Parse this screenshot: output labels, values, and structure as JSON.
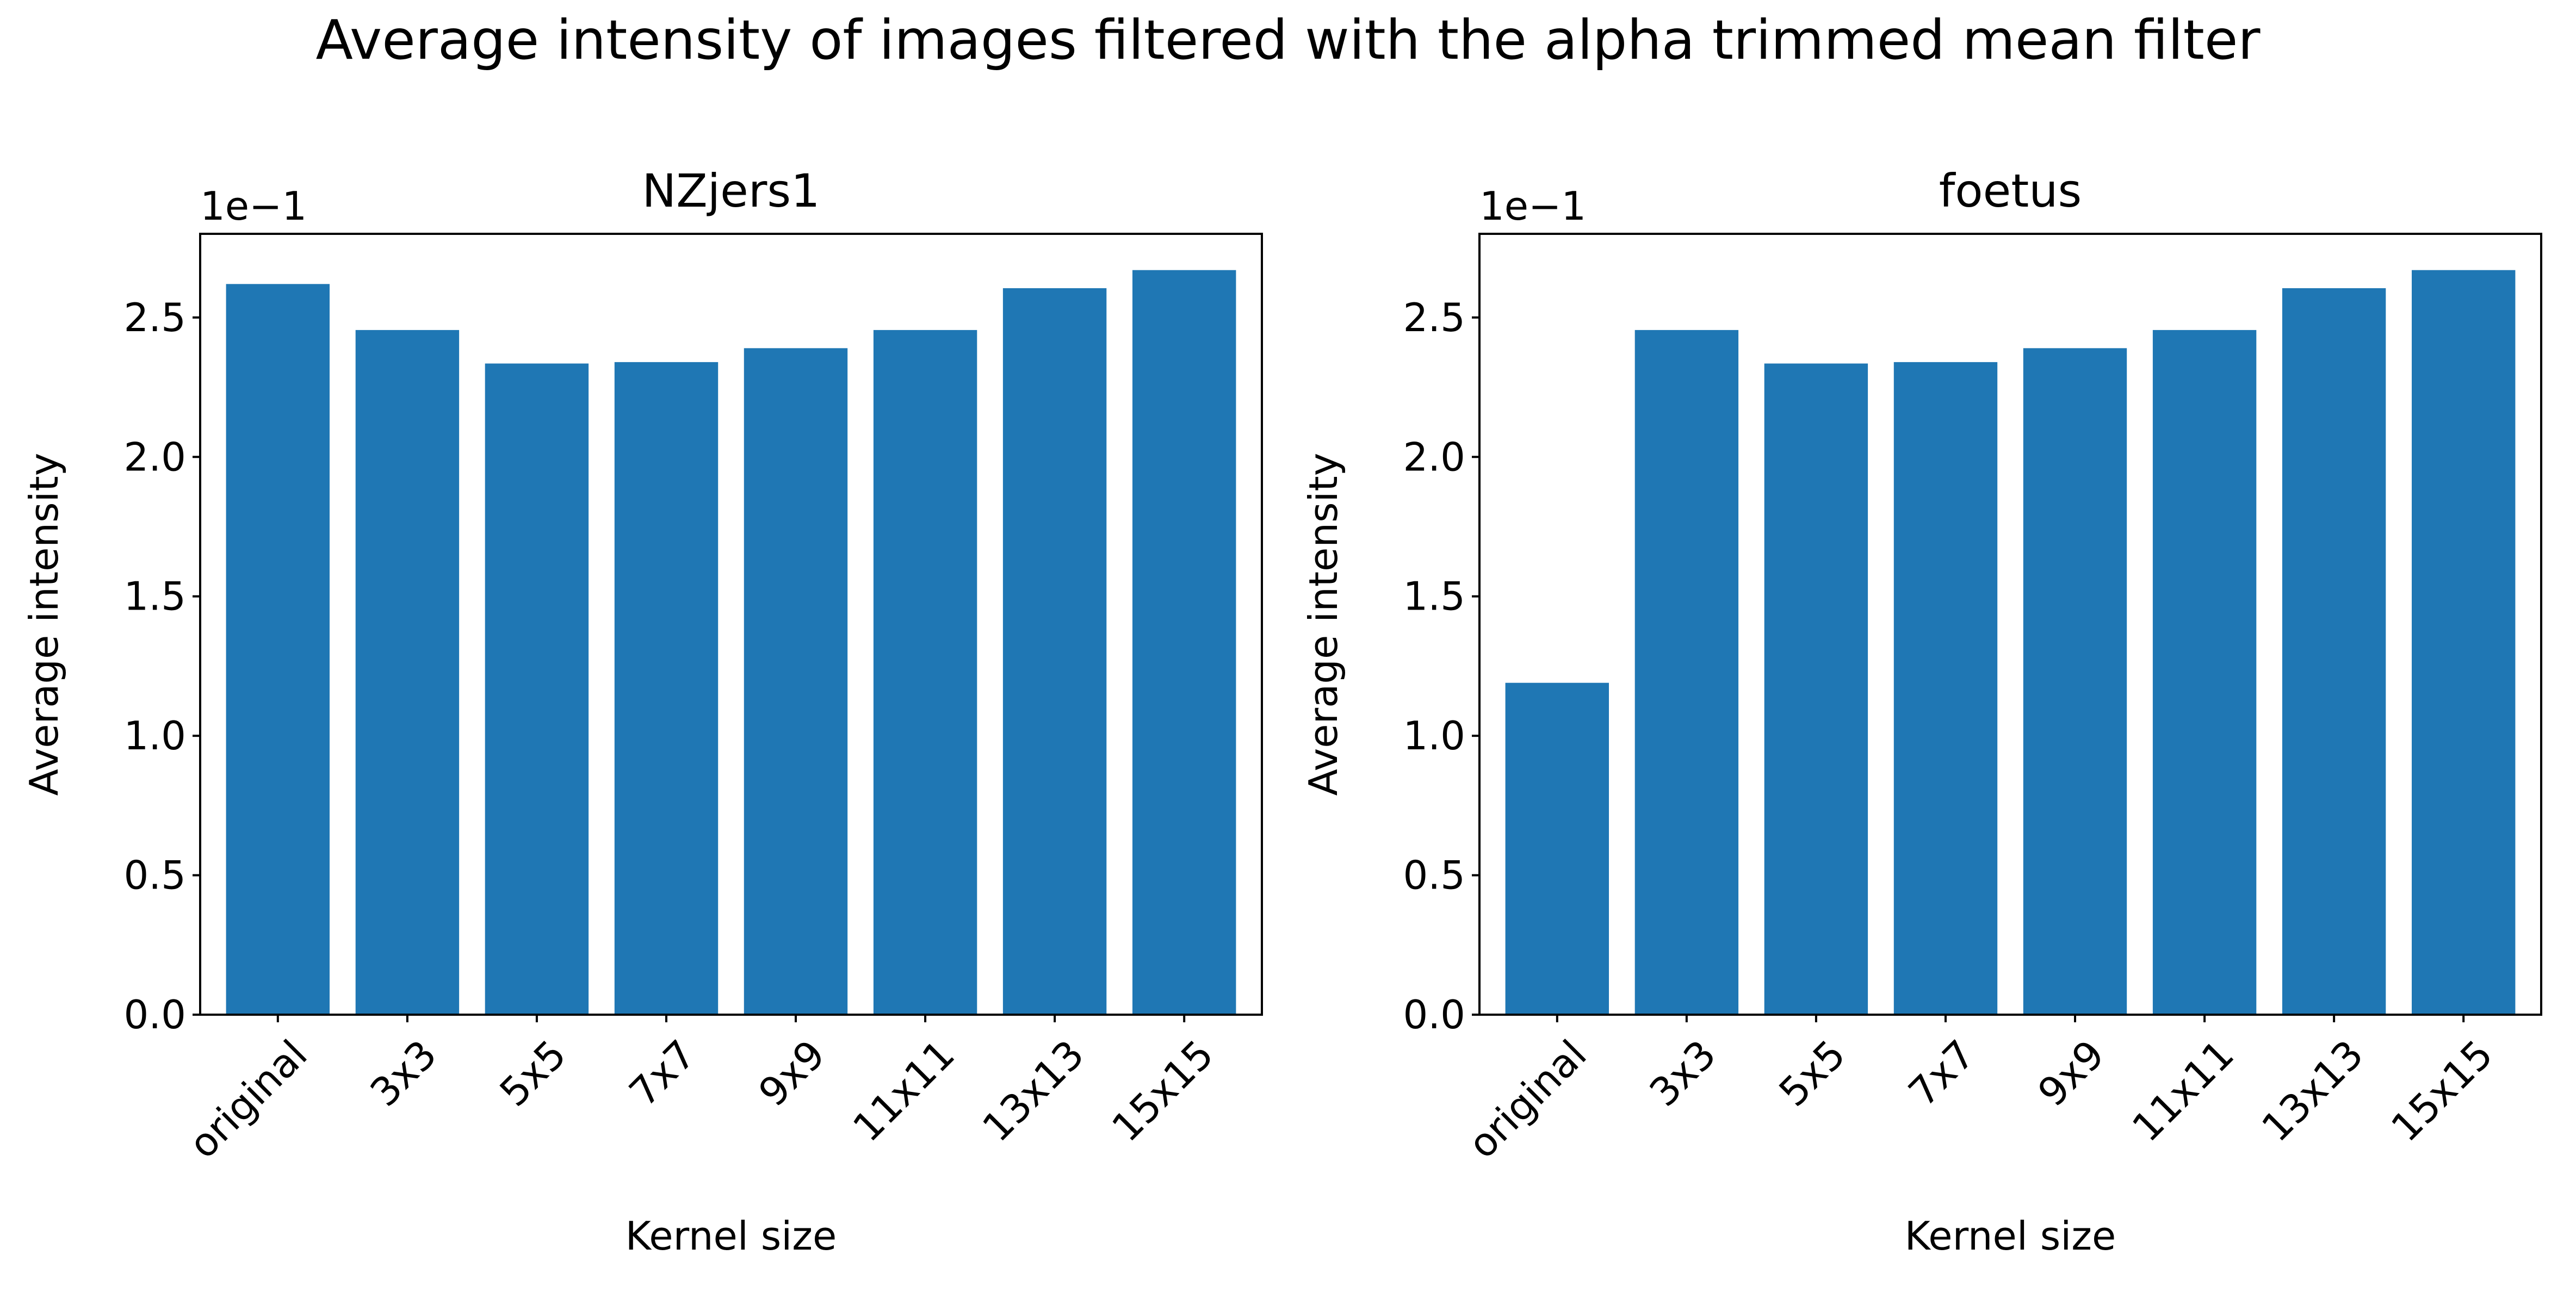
{
  "figure": {
    "title": "Average intensity of images filtered with the alpha trimmed mean filter"
  },
  "colors": {
    "bar": "#1f77b4",
    "axes": "#000000",
    "background": "#ffffff"
  },
  "chart_data": [
    {
      "type": "bar",
      "title": "NZjers1",
      "xlabel": "Kernel size",
      "ylabel": "Average intensity",
      "y_offset_label": "1e−1",
      "ylim": [
        0,
        2.8
      ],
      "yticks": [
        0.0,
        0.5,
        1.0,
        1.5,
        2.0,
        2.5
      ],
      "ytick_labels": [
        "0.0",
        "0.5",
        "1.0",
        "1.5",
        "2.0",
        "2.5"
      ],
      "categories": [
        "original",
        "3x3",
        "5x5",
        "7x7",
        "9x9",
        "11x11",
        "13x13",
        "15x15"
      ],
      "values": [
        2.62,
        2.455,
        2.335,
        2.34,
        2.39,
        2.455,
        2.605,
        2.67
      ],
      "grid": false,
      "legend": "none"
    },
    {
      "type": "bar",
      "title": "foetus",
      "xlabel": "Kernel size",
      "ylabel": "Average intensity",
      "y_offset_label": "1e−1",
      "ylim": [
        0,
        2.8
      ],
      "yticks": [
        0.0,
        0.5,
        1.0,
        1.5,
        2.0,
        2.5
      ],
      "ytick_labels": [
        "0.0",
        "0.5",
        "1.0",
        "1.5",
        "2.0",
        "2.5"
      ],
      "categories": [
        "original",
        "3x3",
        "5x5",
        "7x7",
        "9x9",
        "11x11",
        "13x13",
        "15x15"
      ],
      "values": [
        1.19,
        2.455,
        2.335,
        2.34,
        2.39,
        2.455,
        2.605,
        2.67
      ],
      "grid": false,
      "legend": "none"
    }
  ]
}
